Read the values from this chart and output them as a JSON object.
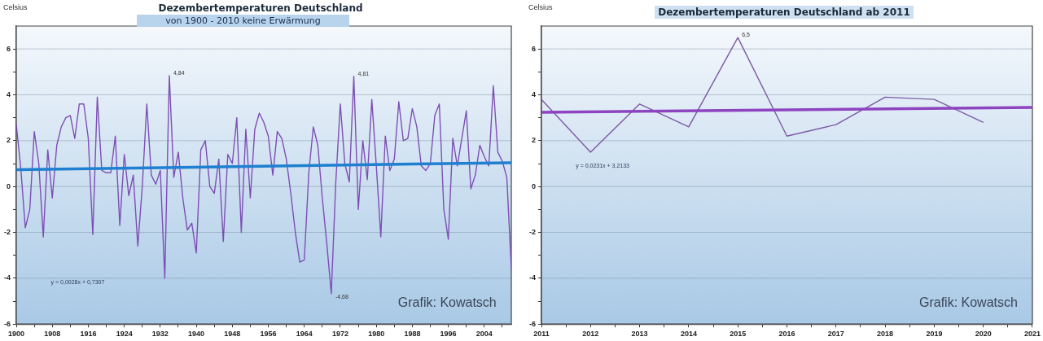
{
  "chart_data": [
    {
      "type": "line",
      "title": "Dezembertemperaturen Deutschland",
      "subtitle": "von 1900 - 2010 keine Erwärmung",
      "ylabel": "Celsius",
      "x": [
        1900,
        1901,
        1902,
        1903,
        1904,
        1905,
        1906,
        1907,
        1908,
        1909,
        1910,
        1911,
        1912,
        1913,
        1914,
        1915,
        1916,
        1917,
        1918,
        1919,
        1920,
        1921,
        1922,
        1923,
        1924,
        1925,
        1926,
        1927,
        1928,
        1929,
        1930,
        1931,
        1932,
        1933,
        1934,
        1935,
        1936,
        1937,
        1938,
        1939,
        1940,
        1941,
        1942,
        1943,
        1944,
        1945,
        1946,
        1947,
        1948,
        1949,
        1950,
        1951,
        1952,
        1953,
        1954,
        1955,
        1956,
        1957,
        1958,
        1959,
        1960,
        1961,
        1962,
        1963,
        1964,
        1965,
        1966,
        1967,
        1968,
        1969,
        1970,
        1971,
        1972,
        1973,
        1974,
        1975,
        1976,
        1977,
        1978,
        1979,
        1980,
        1981,
        1982,
        1983,
        1984,
        1985,
        1986,
        1987,
        1988,
        1989,
        1990,
        1991,
        1992,
        1993,
        1994,
        1995,
        1996,
        1997,
        1998,
        1999,
        2000,
        2001,
        2002,
        2003,
        2004,
        2005,
        2006,
        2007,
        2008,
        2009,
        2010
      ],
      "series": [
        {
          "color": "#7d4fb5",
          "values": [
            2.7,
            0.8,
            -1.8,
            -1.0,
            2.4,
            1.0,
            -2.2,
            1.6,
            -0.5,
            1.8,
            2.6,
            3.0,
            3.1,
            2.1,
            3.6,
            3.6,
            2.1,
            -2.1,
            3.9,
            0.7,
            0.6,
            0.6,
            2.2,
            -1.7,
            1.4,
            -0.4,
            0.5,
            -2.6,
            0.0,
            3.6,
            0.5,
            0.1,
            0.7,
            -4.0,
            4.84,
            0.4,
            1.5,
            -0.5,
            -1.9,
            -1.6,
            -2.9,
            1.6,
            2.0,
            0.0,
            -0.3,
            1.2,
            -2.4,
            1.4,
            1.0,
            3.0,
            -2.0,
            2.5,
            -0.5,
            2.5,
            3.2,
            2.8,
            2.2,
            0.5,
            2.4,
            2.1,
            1.2,
            -0.3,
            -2.0,
            -3.3,
            -3.2,
            0.6,
            2.6,
            1.8,
            -0.5,
            -2.5,
            -4.68,
            0.2,
            3.6,
            1.0,
            0.2,
            4.81,
            -1.0,
            2.0,
            0.3,
            3.8,
            0.9,
            -2.2,
            2.2,
            0.7,
            1.2,
            3.7,
            2.0,
            2.1,
            3.4,
            2.6,
            0.9,
            0.7,
            1.0,
            3.1,
            3.6,
            -1.0,
            -2.3,
            2.1,
            0.9,
            2.1,
            3.3,
            -0.1,
            0.5,
            1.8,
            1.3,
            0.9,
            4.4,
            1.5,
            1.1,
            0.4,
            -3.6
          ],
          "value_labels": [
            null,
            null,
            null,
            null,
            null,
            null,
            null,
            null,
            null,
            null,
            null,
            null,
            null,
            null,
            null,
            null,
            null,
            null,
            null,
            null,
            null,
            null,
            null,
            null,
            null,
            null,
            null,
            null,
            null,
            null,
            null,
            null,
            null,
            null,
            "4,84",
            null,
            null,
            null,
            null,
            null,
            null,
            null,
            null,
            null,
            null,
            null,
            null,
            null,
            null,
            null,
            null,
            null,
            null,
            null,
            null,
            null,
            null,
            null,
            null,
            null,
            null,
            null,
            null,
            null,
            null,
            null,
            null,
            null,
            null,
            null,
            "-4,68",
            null,
            null,
            null,
            null,
            "4,81",
            null,
            null,
            null,
            null,
            null,
            null,
            null,
            null,
            null,
            null,
            null,
            null,
            null,
            null,
            null,
            null,
            null,
            null,
            null,
            null,
            null,
            null,
            null,
            null,
            null,
            null,
            null,
            null,
            null,
            null,
            null,
            null,
            null,
            null,
            null
          ]
        },
        {
          "color": "#1f7fd0",
          "x": [
            1900,
            2010
          ],
          "values": [
            0.73,
            1.04
          ]
        }
      ],
      "xlim": [
        1900,
        2010
      ],
      "xticks": [
        1900,
        {
          "value": 1904,
          "label": null
        },
        1908,
        {
          "value": 1912,
          "label": null
        },
        1916,
        {
          "value": 1920,
          "label": null
        },
        1924,
        {
          "value": 1928,
          "label": null
        },
        1932,
        {
          "value": 1936,
          "label": null
        },
        1940,
        {
          "value": 1944,
          "label": null
        },
        1948,
        {
          "value": 1952,
          "label": null
        },
        1956,
        {
          "value": 1960,
          "label": null
        },
        1964,
        {
          "value": 1968,
          "label": null
        },
        1972,
        {
          "value": 1976,
          "label": null
        },
        1980,
        {
          "value": 1984,
          "label": null
        },
        1988,
        {
          "value": 1992,
          "label": null
        },
        1996,
        {
          "value": 2000,
          "label": null
        },
        2004,
        {
          "value": 2008,
          "label": null
        }
      ],
      "ylim": [
        -6,
        7
      ],
      "yticks": [
        -6,
        {
          "value": -5,
          "label": null
        },
        -4,
        {
          "value": -3,
          "label": null
        },
        -2,
        {
          "value": -1,
          "label": null
        },
        0,
        {
          "value": 1,
          "label": null
        },
        2,
        {
          "value": 3,
          "label": null
        },
        4,
        {
          "value": 5,
          "label": null
        },
        6
      ],
      "grid": "y",
      "legend": false,
      "marker": "none",
      "line_style": "solid",
      "annotations": [
        "y = 0,0028x + 0,7307",
        "Grafik: Kowatsch"
      ]
    },
    {
      "type": "line",
      "title": "Dezembertemperaturen Deutschland ab 2011",
      "ylabel": "Celsius",
      "x": [
        2011,
        2012,
        2013,
        2014,
        2015,
        2016,
        2017,
        2018,
        2019,
        2020
      ],
      "series": [
        {
          "color": "#7b5aa6",
          "values": [
            3.8,
            1.5,
            3.6,
            2.6,
            6.5,
            2.2,
            2.7,
            3.9,
            3.8,
            2.8
          ],
          "value_labels": [
            null,
            null,
            null,
            null,
            "6,5",
            null,
            null,
            null,
            null,
            null
          ]
        },
        {
          "color": "#8e44c0",
          "x": [
            2011,
            2021
          ],
          "values": [
            3.24,
            3.45
          ]
        }
      ],
      "xlim": [
        2011,
        2021
      ],
      "xticks": [
        2011,
        {
          "value": 2011.5,
          "label": null
        },
        2012,
        {
          "value": 2012.5,
          "label": null
        },
        2013,
        {
          "value": 2013.5,
          "label": null
        },
        2014,
        {
          "value": 2014.5,
          "label": null
        },
        2015,
        {
          "value": 2015.5,
          "label": null
        },
        2016,
        {
          "value": 2016.5,
          "label": null
        },
        2017,
        {
          "value": 2017.5,
          "label": null
        },
        2018,
        {
          "value": 2018.5,
          "label": null
        },
        2019,
        {
          "value": 2019.5,
          "label": null
        },
        2020,
        {
          "value": 2020.5,
          "label": null
        },
        2021
      ],
      "ylim": [
        -6,
        7
      ],
      "yticks": [
        -6,
        {
          "value": -5,
          "label": null
        },
        -4,
        {
          "value": -3,
          "label": null
        },
        -2,
        {
          "value": -1,
          "label": null
        },
        0,
        {
          "value": 1,
          "label": null
        },
        2,
        {
          "value": 3,
          "label": null
        },
        4,
        {
          "value": 5,
          "label": null
        },
        6
      ],
      "grid": "y",
      "legend": false,
      "marker": "none",
      "line_style": "solid",
      "annotations": [
        "y = 0,0231x + 3,2133",
        "Grafik: Kowatsch"
      ]
    }
  ]
}
